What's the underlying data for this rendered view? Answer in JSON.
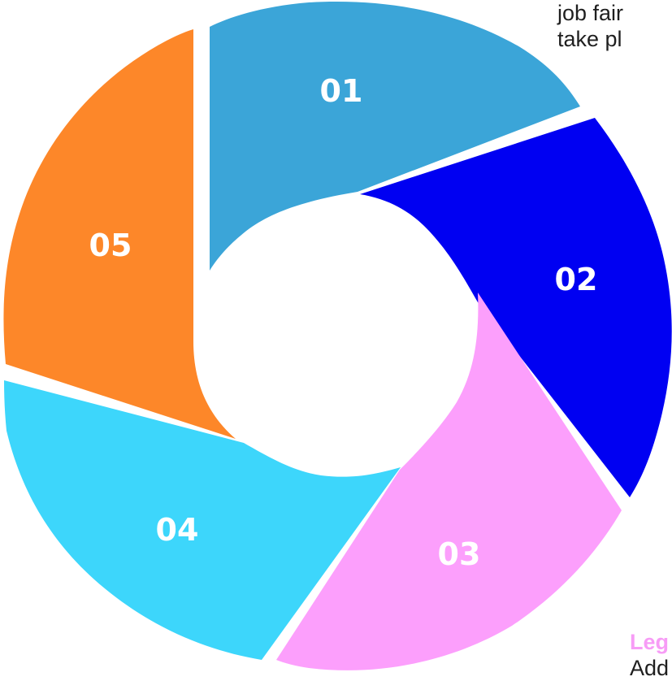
{
  "diagram": {
    "segments": [
      {
        "id": "01",
        "label": "01",
        "color": "#3ba5d8"
      },
      {
        "id": "02",
        "label": "02",
        "color": "#0000f2"
      },
      {
        "id": "03",
        "label": "03",
        "color": "#fc9ffc"
      },
      {
        "id": "04",
        "label": "04",
        "color": "#3dd6fb"
      },
      {
        "id": "05",
        "label": "05",
        "color": "#fd8729"
      }
    ]
  },
  "notes": {
    "top_line1": "job fair",
    "top_line2": "take pl",
    "legend_title": "Leg",
    "legend_text": "Add"
  }
}
